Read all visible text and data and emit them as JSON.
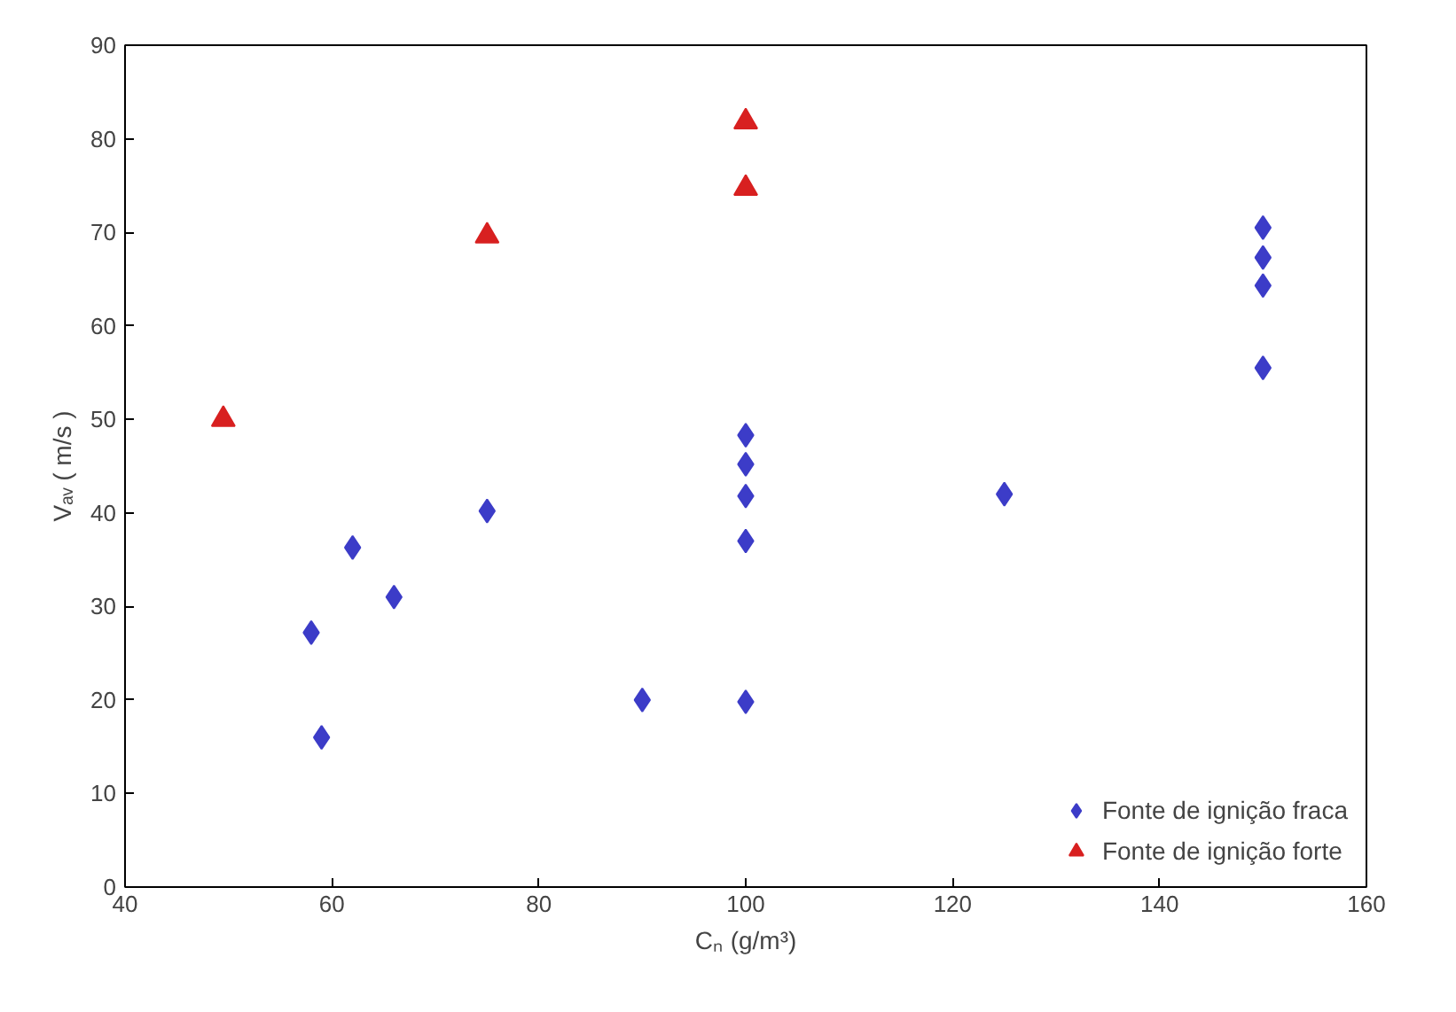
{
  "chart_data": {
    "type": "scatter",
    "xlabel": "Cₙ (g/m³)",
    "ylabel": "Vₐᵥ ( m/s )",
    "xlim": [
      40,
      160
    ],
    "ylim": [
      0,
      90
    ],
    "xticks": [
      40,
      60,
      80,
      100,
      120,
      140,
      160
    ],
    "yticks": [
      0,
      10,
      20,
      30,
      40,
      50,
      60,
      70,
      80,
      90
    ],
    "grid": false,
    "legend": "bottom right",
    "series": [
      {
        "name": "Fonte de ignição fraca",
        "color": "#3c3cc8",
        "marker": "diamond",
        "x": [
          58,
          59,
          62,
          66,
          75,
          90,
          100,
          100,
          100,
          100,
          100,
          125,
          150,
          150,
          150,
          150
        ],
        "values": [
          27.2,
          16,
          36.3,
          31,
          40.2,
          20,
          19.8,
          37,
          41.8,
          45.2,
          48.3,
          42,
          55.5,
          64.3,
          67.3,
          70.5
        ]
      },
      {
        "name": "Fonte de ignição forte",
        "color": "#d82020",
        "marker": "triangle",
        "x": [
          49.5,
          75,
          100,
          100
        ],
        "values": [
          50,
          69.6,
          74.7,
          81.8
        ]
      }
    ]
  }
}
